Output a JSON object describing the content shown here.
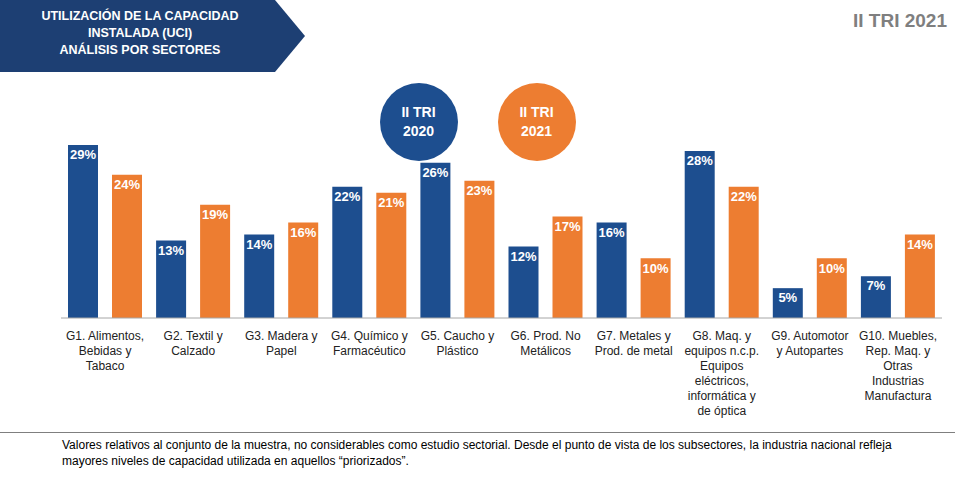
{
  "chart_data": {
    "type": "bar",
    "title": "UTILIZACIÓN DE LA CAPACIDAD INSTALADA (UCI)",
    "subtitle": "ANÁLISIS POR SECTORES",
    "annotations": [
      "II TRI 2021",
      "Valores relativos al conjunto de la muestra, no considerables como estudio sectorial. Desde el punto de vista de los subsectores, la industria nacional refleja mayores niveles de capacidad utilizada en aquellos “priorizados”."
    ],
    "categories": [
      "G1. Alimentos, Bebidas y Tabaco",
      "G2. Textil y Calzado",
      "G3. Madera y Papel",
      "G4. Químico y Farmacéutico",
      "G5. Caucho y Plástico",
      "G6. Prod. No Metálicos",
      "G7. Metales y Prod. de metal",
      "G8. Maq. y equipos n.c.p. Equipos eléctricos, informática y de óptica",
      "G9. Automotor y Autopartes",
      "G10. Muebles, Rep. Maq. y Otras Industrias Manufactura"
    ],
    "series": [
      {
        "name": "II TRI 2020",
        "color": "#1d4e8f",
        "values": [
          29,
          13,
          14,
          22,
          26,
          12,
          16,
          28,
          5,
          7
        ],
        "value_labels": [
          "29%",
          "13%",
          "14%",
          "22%",
          "26%",
          "12%",
          "16%",
          "28%",
          "5%",
          "7%"
        ]
      },
      {
        "name": "II TRI 2021",
        "color": "#ed7d31",
        "values": [
          24,
          19,
          16,
          21,
          23,
          17,
          10,
          22,
          10,
          14
        ],
        "value_labels": [
          "24%",
          "19%",
          "16%",
          "21%",
          "23%",
          "17%",
          "10%",
          "22%",
          "10%",
          "14%"
        ]
      }
    ],
    "ylim": [
      0,
      30
    ],
    "tick_labels": "x",
    "data_labels": true,
    "legend": "top",
    "grid": false
  }
}
